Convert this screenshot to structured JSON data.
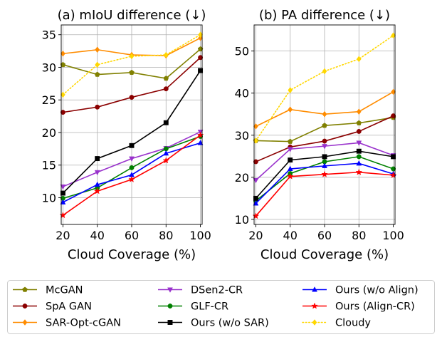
{
  "chart_data": [
    {
      "type": "line",
      "title": "(a) mIoU difference (↓)",
      "xlabel": "Cloud Coverage (%)",
      "ylabel": "",
      "x": [
        20,
        40,
        60,
        80,
        100
      ],
      "xlim": [
        19,
        101
      ],
      "ylim": [
        5.9,
        36.5
      ],
      "yticks": [
        10,
        15,
        20,
        25,
        30,
        35
      ],
      "grid": true,
      "series": [
        {
          "name": "McGAN",
          "values": [
            30.4,
            28.9,
            29.2,
            28.3,
            32.8
          ]
        },
        {
          "name": "SpA GAN",
          "values": [
            23.1,
            23.9,
            25.4,
            26.7,
            31.5
          ]
        },
        {
          "name": "SAR-Opt-cGAN",
          "values": [
            32.1,
            32.7,
            31.9,
            31.8,
            34.5
          ]
        },
        {
          "name": "DSen2-CR",
          "values": [
            11.7,
            13.9,
            16.0,
            17.6,
            20.1
          ]
        },
        {
          "name": "GLF-CR",
          "values": [
            9.9,
            11.5,
            14.6,
            17.5,
            19.4
          ]
        },
        {
          "name": "Ours (w/o SAR)",
          "values": [
            10.7,
            16.0,
            18.0,
            21.5,
            29.5
          ]
        },
        {
          "name": "Ours (w/o Align)",
          "values": [
            9.3,
            12.0,
            13.5,
            16.8,
            18.4
          ]
        },
        {
          "name": "Ours (Align-CR)",
          "values": [
            7.3,
            11.0,
            12.8,
            15.7,
            19.6
          ]
        },
        {
          "name": "Cloudy",
          "values": [
            25.8,
            30.4,
            31.7,
            31.9,
            35.0
          ]
        }
      ]
    },
    {
      "type": "line",
      "title": "(b) PA difference (↓)",
      "xlabel": "Cloud Coverage (%)",
      "ylabel": "",
      "x": [
        20,
        40,
        60,
        80,
        100
      ],
      "xlim": [
        19,
        101
      ],
      "ylim": [
        8.8,
        56.2
      ],
      "yticks": [
        10,
        20,
        30,
        40,
        50
      ],
      "grid": true,
      "series": [
        {
          "name": "McGAN",
          "values": [
            28.7,
            28.5,
            32.3,
            32.9,
            34.2
          ]
        },
        {
          "name": "SpA GAN",
          "values": [
            23.7,
            27.2,
            28.6,
            30.9,
            34.6
          ]
        },
        {
          "name": "SAR-Opt-cGAN",
          "values": [
            32.1,
            36.1,
            35.0,
            35.6,
            40.3
          ]
        },
        {
          "name": "DSen2-CR",
          "values": [
            19.3,
            26.7,
            27.4,
            28.2,
            25.2
          ]
        },
        {
          "name": "GLF-CR",
          "values": [
            14.4,
            20.9,
            23.7,
            24.9,
            22.0
          ]
        },
        {
          "name": "Ours (w/o SAR)",
          "values": [
            15.0,
            24.1,
            24.9,
            26.2,
            24.9
          ]
        },
        {
          "name": "Ours (w/o Align)",
          "values": [
            13.8,
            22.0,
            22.7,
            23.3,
            20.8
          ]
        },
        {
          "name": "Ours (Align-CR)",
          "values": [
            10.8,
            20.2,
            20.7,
            21.2,
            20.5
          ]
        },
        {
          "name": "Cloudy",
          "values": [
            28.7,
            40.7,
            45.2,
            48.1,
            53.7
          ]
        }
      ]
    }
  ],
  "legend": {
    "placement": "bottom",
    "entries": [
      {
        "name": "McGAN",
        "color": "#808000",
        "marker": "pentagon",
        "dash": "solid"
      },
      {
        "name": "SpA GAN",
        "color": "#8b0000",
        "marker": "circle",
        "dash": "solid"
      },
      {
        "name": "SAR-Opt-cGAN",
        "color": "#ff8c00",
        "marker": "diamond",
        "dash": "solid"
      },
      {
        "name": "DSen2-CR",
        "color": "#9932cc",
        "marker": "triangle-down",
        "dash": "solid"
      },
      {
        "name": "GLF-CR",
        "color": "#008000",
        "marker": "circle",
        "dash": "solid"
      },
      {
        "name": "Ours (w/o SAR)",
        "color": "#000000",
        "marker": "square",
        "dash": "solid"
      },
      {
        "name": "Ours (w/o Align)",
        "color": "#0000ff",
        "marker": "triangle-up",
        "dash": "solid"
      },
      {
        "name": "Ours (Align-CR)",
        "color": "#ff0000",
        "marker": "star",
        "dash": "solid"
      },
      {
        "name": "Cloudy",
        "color": "#ffd700",
        "marker": "diamond",
        "dash": "dotted"
      }
    ]
  }
}
